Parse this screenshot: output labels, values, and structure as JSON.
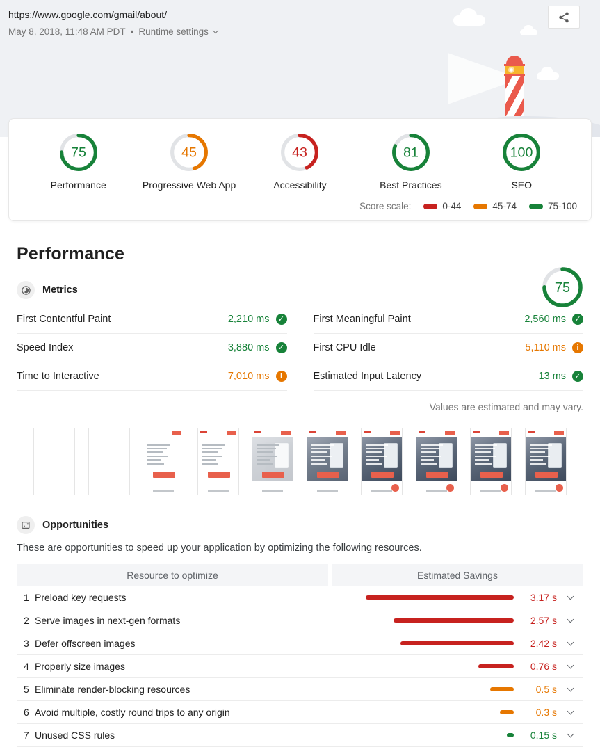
{
  "colors": {
    "pass": "#178239",
    "average": "#e67700",
    "fail": "#c7221f",
    "track": "#e1e3e6"
  },
  "header": {
    "url": "https://www.google.com/gmail/about/",
    "timestamp": "May 8, 2018, 11:48 AM PDT",
    "separator": "•",
    "runtime_settings_label": "Runtime settings"
  },
  "scores": {
    "categories": [
      {
        "label": "Performance",
        "score": 75,
        "level": "pass"
      },
      {
        "label": "Progressive Web App",
        "score": 45,
        "level": "average"
      },
      {
        "label": "Accessibility",
        "score": 43,
        "level": "fail"
      },
      {
        "label": "Best Practices",
        "score": 81,
        "level": "pass"
      },
      {
        "label": "SEO",
        "score": 100,
        "level": "pass"
      }
    ],
    "scale": {
      "label": "Score scale:",
      "ranges": [
        {
          "label": "0-44",
          "level": "fail"
        },
        {
          "label": "45-74",
          "level": "average"
        },
        {
          "label": "75-100",
          "level": "pass"
        }
      ]
    }
  },
  "performance": {
    "title": "Performance",
    "gauge_score": 75,
    "gauge_level": "pass",
    "metrics_heading": "Metrics",
    "metrics": [
      {
        "label": "First Contentful Paint",
        "value": "2,210 ms",
        "level": "pass"
      },
      {
        "label": "Speed Index",
        "value": "3,880 ms",
        "level": "pass"
      },
      {
        "label": "Time to Interactive",
        "value": "7,010 ms",
        "level": "average"
      },
      {
        "label": "First Meaningful Paint",
        "value": "2,560 ms",
        "level": "pass"
      },
      {
        "label": "First CPU Idle",
        "value": "5,110 ms",
        "level": "average"
      },
      {
        "label": "Estimated Input Latency",
        "value": "13 ms",
        "level": "pass"
      }
    ],
    "disclaimer": "Values are estimated and may vary.",
    "filmstrip": [
      {
        "frame": 1,
        "variant": {
          "header": false,
          "logo": false,
          "text": "none",
          "photo": 0,
          "button": false,
          "fab": false
        }
      },
      {
        "frame": 2,
        "variant": {
          "header": false,
          "logo": false,
          "text": "none",
          "photo": 0,
          "button": false,
          "fab": false
        }
      },
      {
        "frame": 3,
        "variant": {
          "header": true,
          "logo": false,
          "text": "gray",
          "photo": 0,
          "button": true,
          "fab": false
        }
      },
      {
        "frame": 4,
        "variant": {
          "header": true,
          "logo": true,
          "text": "gray",
          "photo": 0,
          "button": true,
          "fab": false
        }
      },
      {
        "frame": 5,
        "variant": {
          "header": true,
          "logo": true,
          "text": "gray",
          "photo": 0.3,
          "button": true,
          "fab": false
        }
      },
      {
        "frame": 6,
        "variant": {
          "header": true,
          "logo": true,
          "text": "white",
          "photo": 0.85,
          "button": true,
          "fab": false
        }
      },
      {
        "frame": 7,
        "variant": {
          "header": true,
          "logo": true,
          "text": "white",
          "photo": 1,
          "button": true,
          "fab": true
        }
      },
      {
        "frame": 8,
        "variant": {
          "header": true,
          "logo": true,
          "text": "white",
          "photo": 1,
          "button": true,
          "fab": true
        }
      },
      {
        "frame": 9,
        "variant": {
          "header": true,
          "logo": true,
          "text": "white",
          "photo": 1,
          "button": true,
          "fab": true
        }
      },
      {
        "frame": 10,
        "variant": {
          "header": true,
          "logo": true,
          "text": "white",
          "photo": 1,
          "button": true,
          "fab": true
        }
      }
    ]
  },
  "opportunities": {
    "heading": "Opportunities",
    "description": "These are opportunities to speed up your application by optimizing the following resources.",
    "columns": [
      "Resource to optimize",
      "Estimated Savings"
    ],
    "max_savings_s": 3.17,
    "rows": [
      {
        "index": 1,
        "label": "Preload key requests",
        "savings_s": 3.17,
        "savings_label": "3.17 s",
        "level": "fail"
      },
      {
        "index": 2,
        "label": "Serve images in next-gen formats",
        "savings_s": 2.57,
        "savings_label": "2.57 s",
        "level": "fail"
      },
      {
        "index": 3,
        "label": "Defer offscreen images",
        "savings_s": 2.42,
        "savings_label": "2.42 s",
        "level": "fail"
      },
      {
        "index": 4,
        "label": "Properly size images",
        "savings_s": 0.76,
        "savings_label": "0.76 s",
        "level": "fail"
      },
      {
        "index": 5,
        "label": "Eliminate render-blocking resources",
        "savings_s": 0.5,
        "savings_label": "0.5 s",
        "level": "average"
      },
      {
        "index": 6,
        "label": "Avoid multiple, costly round trips to any origin",
        "savings_s": 0.3,
        "savings_label": "0.3 s",
        "level": "average"
      },
      {
        "index": 7,
        "label": "Unused CSS rules",
        "savings_s": 0.15,
        "savings_label": "0.15 s",
        "level": "pass"
      }
    ]
  }
}
